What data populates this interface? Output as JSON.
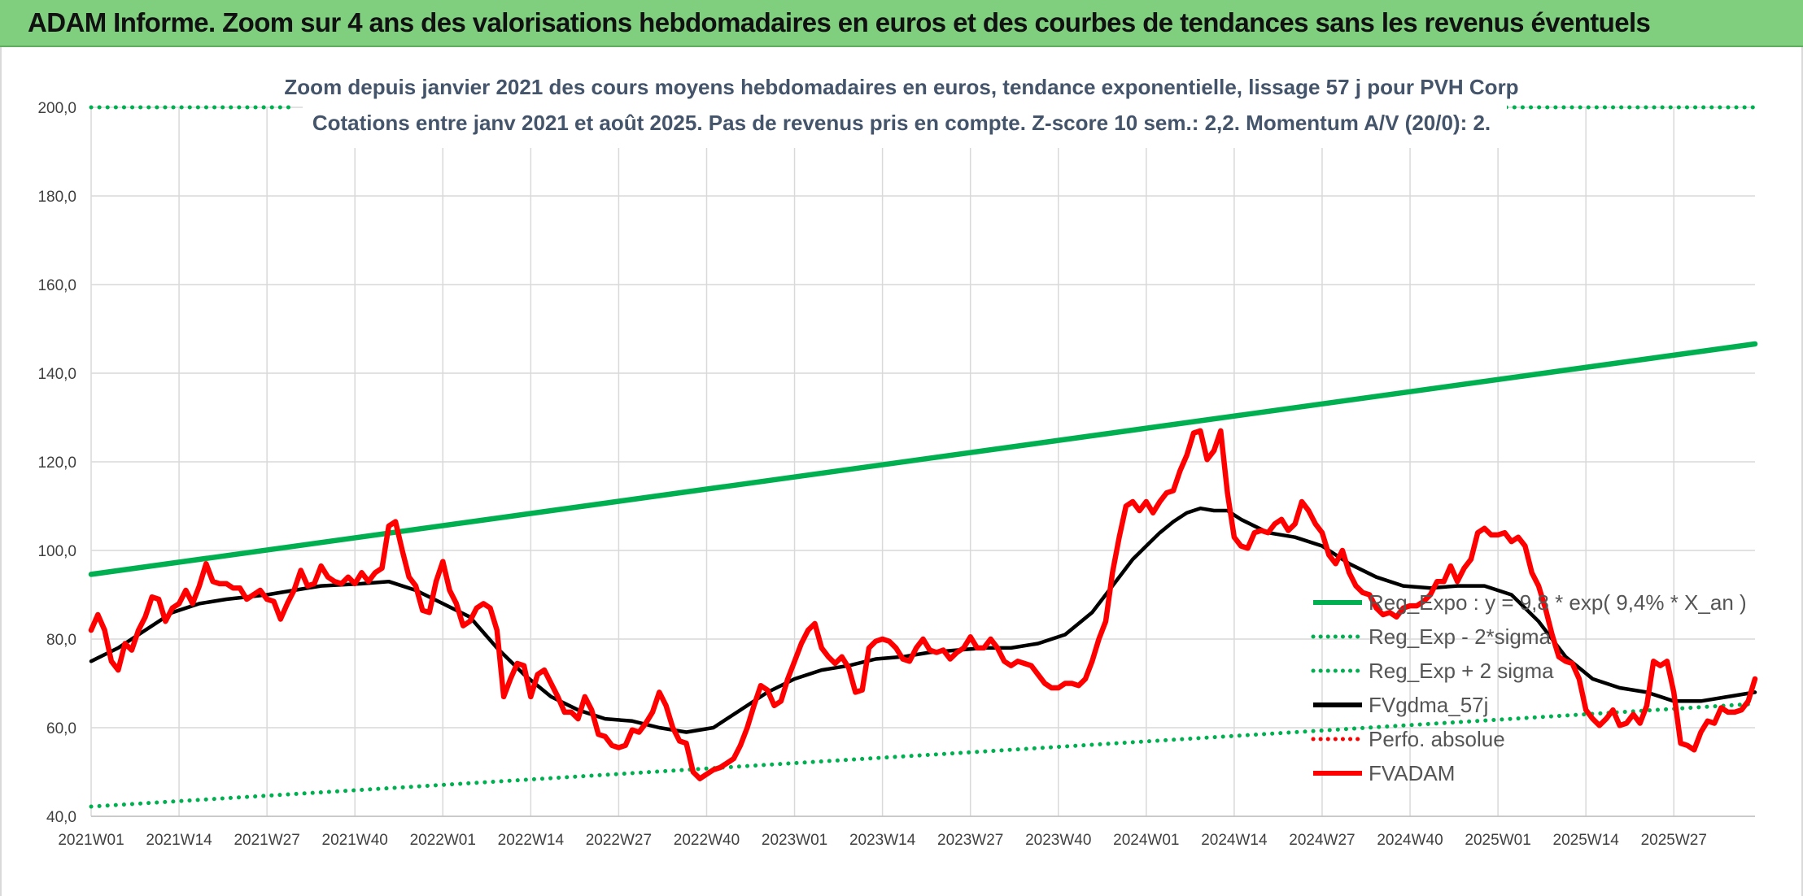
{
  "header": {
    "title": "ADAM Informe. Zoom sur 4 ans des valorisations hebdomadaires en euros et des courbes de tendances sans les revenus éventuels"
  },
  "chart_data": {
    "type": "line",
    "subtitle_line1": "Zoom depuis janvier 2021 des cours moyens hebdomadaires en euros, tendance exponentielle, lissage 57 j pour PVH Corp",
    "subtitle_line2": "Cotations entre janv 2021 et août 2025. Pas de revenus pris en compte. Z-score 10 sem.: 2,2. Momentum A/V (20/0): 2.",
    "ylim": [
      40,
      200
    ],
    "yticks": [
      "200,0",
      "180,0",
      "160,0",
      "140,0",
      "120,0",
      "100,0",
      "80,0",
      "60,0",
      "40,0"
    ],
    "ytick_values": [
      200,
      180,
      160,
      140,
      120,
      100,
      80,
      60,
      40
    ],
    "xlim": [
      0,
      246
    ],
    "xticks": [
      "2021W01",
      "2021W14",
      "2021W27",
      "2021W40",
      "2022W01",
      "2022W14",
      "2022W27",
      "2022W40",
      "2023W01",
      "2023W14",
      "2023W27",
      "2023W40",
      "2024W01",
      "2024W14",
      "2024W27",
      "2024W40",
      "2025W01",
      "2025W14",
      "2025W27"
    ],
    "xtick_values": [
      0,
      13,
      26,
      39,
      52,
      65,
      78,
      91,
      104,
      117,
      130,
      143,
      156,
      169,
      182,
      195,
      208,
      221,
      234
    ],
    "grid": true,
    "legend_position": "right",
    "colors": {
      "reg_exp": "#00b050",
      "fvgdma": "#000000",
      "perfo": "#ff0000",
      "fvadam": "#ff0000"
    },
    "series": [
      {
        "name": "Reg_Expo : y = 9,8 * exp( 9,4% *  X_an )",
        "style": "solid",
        "color": "#00b050",
        "x": [
          0,
          246
        ],
        "y": [
          94.6,
          146.6
        ]
      },
      {
        "name": "Reg_Exp - 2*sigma",
        "style": "dotted",
        "color": "#00b050",
        "x": [
          0,
          246
        ],
        "y": [
          42.2,
          65.4
        ]
      },
      {
        "name": "Reg_Exp + 2 sigma",
        "style": "dotted",
        "color": "#00b050",
        "x": [
          0,
          30,
          200,
          246
        ],
        "y": [
          200,
          200,
          200,
          200
        ],
        "segments": [
          [
            0,
            30
          ],
          [
            208,
            246
          ]
        ]
      },
      {
        "name": "FVgdma_57j",
        "style": "solid",
        "color": "#000000",
        "x": [
          0,
          4,
          8,
          12,
          16,
          20,
          26,
          30,
          34,
          40,
          44,
          48,
          52,
          56,
          60,
          64,
          68,
          72,
          76,
          80,
          84,
          88,
          92,
          96,
          100,
          104,
          108,
          112,
          116,
          120,
          124,
          128,
          132,
          136,
          140,
          144,
          148,
          152,
          154,
          156,
          158,
          160,
          162,
          164,
          166,
          168,
          170,
          174,
          178,
          182,
          186,
          190,
          194,
          198,
          202,
          206,
          210,
          214,
          218,
          222,
          226,
          230,
          234,
          238,
          242,
          246
        ],
        "y": [
          75,
          78,
          82,
          86,
          88,
          89,
          90,
          91,
          92,
          92.5,
          93,
          91,
          88,
          85,
          78,
          72,
          67,
          64,
          62,
          61.5,
          60,
          59,
          60,
          64,
          68,
          71,
          73,
          74,
          75.5,
          76,
          77,
          77.5,
          78,
          78,
          79,
          81,
          86,
          94,
          98,
          101,
          104,
          106.5,
          108.5,
          109.5,
          109,
          109,
          107,
          104,
          103,
          101,
          97,
          94,
          92,
          91.5,
          92,
          92,
          90,
          84,
          76,
          71,
          69,
          68,
          66,
          66,
          67,
          68
        ]
      },
      {
        "name": "Perfo. absolue",
        "style": "dotted",
        "color": "#ff0000",
        "x": [],
        "y": []
      },
      {
        "name": "FVADAM",
        "style": "solid",
        "color": "#ff0000",
        "x": [
          0,
          1,
          2,
          3,
          4,
          5,
          6,
          7,
          8,
          9,
          10,
          11,
          12,
          13,
          14,
          15,
          16,
          17,
          18,
          19,
          20,
          21,
          22,
          23,
          24,
          25,
          26,
          27,
          28,
          29,
          30,
          31,
          32,
          33,
          34,
          35,
          36,
          37,
          38,
          39,
          40,
          41,
          42,
          43,
          44,
          45,
          46,
          47,
          48,
          49,
          50,
          51,
          52,
          53,
          54,
          55,
          56,
          57,
          58,
          59,
          60,
          61,
          62,
          63,
          64,
          65,
          66,
          67,
          68,
          69,
          70,
          71,
          72,
          73,
          74,
          75,
          76,
          77,
          78,
          79,
          80,
          81,
          82,
          83,
          84,
          85,
          86,
          87,
          88,
          89,
          90,
          91,
          92,
          93,
          94,
          95,
          96,
          97,
          98,
          99,
          100,
          101,
          102,
          103,
          104,
          105,
          106,
          107,
          108,
          109,
          110,
          111,
          112,
          113,
          114,
          115,
          116,
          117,
          118,
          119,
          120,
          121,
          122,
          123,
          124,
          125,
          126,
          127,
          128,
          129,
          130,
          131,
          132,
          133,
          134,
          135,
          136,
          137,
          138,
          139,
          140,
          141,
          142,
          143,
          144,
          145,
          146,
          147,
          148,
          149,
          150,
          151,
          152,
          153,
          154,
          155,
          156,
          157,
          158,
          159,
          160,
          161,
          162,
          163,
          164,
          165,
          166,
          167,
          168,
          169,
          170,
          171,
          172,
          173,
          174,
          175,
          176,
          177,
          178,
          179,
          180,
          181,
          182,
          183,
          184,
          185,
          186,
          187,
          188,
          189,
          190,
          191,
          192,
          193,
          194,
          195,
          196,
          197,
          198,
          199,
          200,
          201,
          202,
          203,
          204,
          205,
          206,
          207,
          208,
          209,
          210,
          211,
          212,
          213,
          214,
          215,
          216,
          217,
          218,
          219,
          220,
          221,
          222,
          223,
          224,
          225,
          226,
          227,
          228,
          229,
          230,
          231,
          232,
          233,
          234,
          235,
          236,
          237,
          238,
          239,
          240,
          241,
          242,
          243,
          244,
          245,
          246
        ],
        "y": [
          82,
          85.5,
          82,
          75,
          73,
          79,
          77.5,
          82,
          85,
          89.5,
          89,
          84,
          87,
          88,
          91,
          88,
          92,
          97,
          93,
          92.5,
          92.5,
          91.5,
          91.5,
          89,
          90,
          91,
          89,
          88.5,
          84.5,
          88,
          91,
          95.5,
          92,
          92.5,
          96.5,
          94,
          93,
          92.5,
          94,
          92.5,
          95,
          93,
          95,
          96,
          105.5,
          106.5,
          100,
          94,
          92,
          86.5,
          86,
          93,
          97.5,
          91,
          88,
          83,
          84,
          87,
          88,
          87,
          82,
          67,
          71,
          74.5,
          74,
          67,
          72,
          73,
          70,
          67,
          63.5,
          63.5,
          62,
          67,
          64,
          58.5,
          58,
          56,
          55.5,
          56,
          59.5,
          59,
          61,
          63.5,
          68,
          65,
          60,
          57,
          56.5,
          50,
          48.5,
          49.5,
          50.5,
          51,
          52,
          53,
          56,
          60,
          65,
          69.5,
          68.5,
          65,
          66,
          71,
          75,
          79,
          82,
          83.5,
          78,
          76,
          74.5,
          76,
          73.5,
          68,
          68.5,
          78,
          79.5,
          80,
          79.5,
          78,
          75.5,
          75,
          78,
          80,
          77.5,
          77,
          77.5,
          75.5,
          77,
          78,
          80.5,
          78,
          78,
          80,
          78,
          75,
          74,
          75,
          74.5,
          74,
          72,
          70,
          69,
          69,
          70,
          70,
          69.5,
          71,
          75,
          80,
          84,
          95,
          103,
          110,
          111,
          109,
          111,
          108.5,
          111,
          113,
          113.5,
          118,
          121.5,
          126.5,
          127,
          120.5,
          122.5,
          127,
          113,
          103,
          101,
          100.5,
          104,
          104.5,
          104,
          106,
          107,
          104.5,
          106,
          111,
          109,
          106,
          104,
          99,
          97,
          100,
          95,
          92,
          90.5,
          90,
          87,
          85.5,
          86,
          85,
          87,
          87.5,
          87.5,
          88.5,
          90,
          93,
          93,
          96.5,
          93,
          96,
          98,
          104,
          105,
          103.5,
          103.5,
          104,
          102,
          103,
          101,
          95,
          92,
          87,
          81,
          76,
          75,
          74.5,
          71,
          64,
          62,
          60.5,
          62,
          64,
          60.5,
          61,
          63,
          61,
          65,
          75,
          74,
          75,
          68,
          56.5,
          56,
          55,
          59,
          61.5,
          61,
          64.5,
          63.5,
          63.5,
          64,
          66,
          71
        ]
      }
    ]
  }
}
